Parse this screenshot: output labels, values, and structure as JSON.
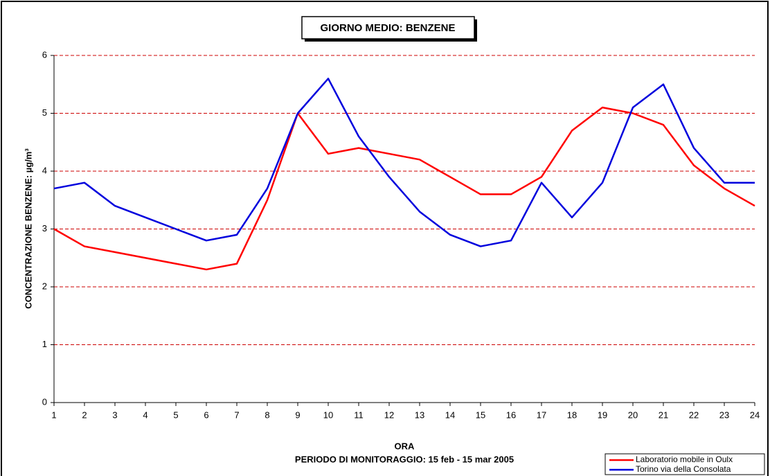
{
  "chart_data": {
    "type": "line",
    "title": "GIORNO MEDIO: BENZENE",
    "x_label": "ORA",
    "x_note": "PERIODO DI MONITORAGGIO: 15 feb - 15 mar 2005",
    "y_label": "CONCENTRAZIONE BENZENE: µg/m³",
    "x": [
      1,
      2,
      3,
      4,
      5,
      6,
      7,
      8,
      9,
      10,
      11,
      12,
      13,
      14,
      15,
      16,
      17,
      18,
      19,
      20,
      21,
      22,
      23,
      24
    ],
    "series": [
      {
        "name": "Laboratorio mobile in Oulx",
        "color": "#ff0000",
        "values": [
          3.0,
          2.7,
          2.6,
          2.5,
          2.4,
          2.3,
          2.4,
          3.5,
          5.0,
          4.3,
          4.4,
          4.3,
          4.2,
          3.9,
          3.6,
          3.6,
          3.9,
          4.7,
          5.1,
          5.0,
          4.8,
          4.1,
          3.7,
          3.4
        ]
      },
      {
        "name": "Torino via della Consolata",
        "color": "#0000dd",
        "values": [
          3.7,
          3.8,
          3.4,
          3.2,
          3.0,
          2.8,
          2.9,
          3.7,
          5.0,
          5.6,
          4.6,
          3.9,
          3.3,
          2.9,
          2.7,
          2.8,
          3.8,
          3.2,
          3.8,
          5.1,
          5.5,
          4.4,
          3.8,
          3.8
        ]
      }
    ],
    "xlim": [
      1,
      24
    ],
    "xticks": [
      1,
      2,
      3,
      4,
      5,
      6,
      7,
      8,
      9,
      10,
      11,
      12,
      13,
      14,
      15,
      16,
      17,
      18,
      19,
      20,
      21,
      22,
      23,
      24
    ],
    "ylim": [
      0,
      6
    ],
    "yticks": [
      0,
      1,
      2,
      3,
      4,
      5,
      6
    ],
    "grid": true,
    "grid_color": "#cc0000",
    "legend": "lower right"
  }
}
